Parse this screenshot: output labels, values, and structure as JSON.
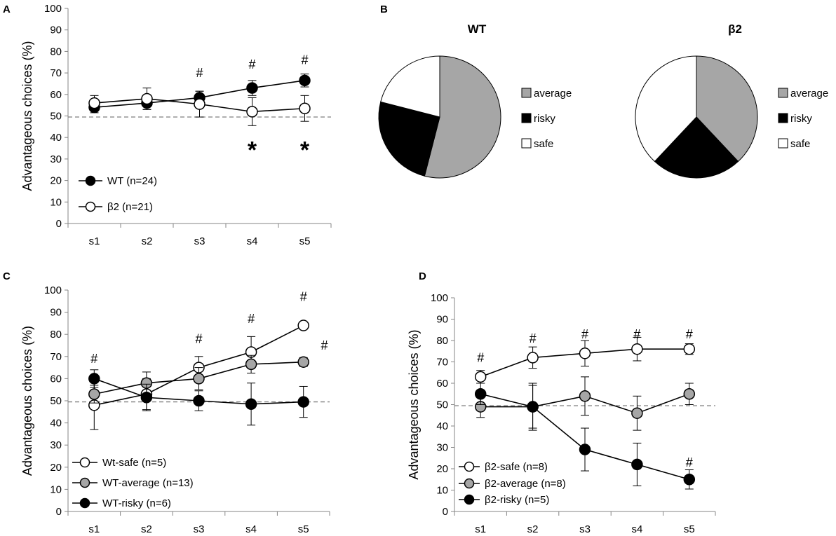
{
  "colors": {
    "black": "#000000",
    "gray": "#a6a6a6",
    "white": "#ffffff",
    "axis": "#868686",
    "dash": "#7f7f7f"
  },
  "chart_data": [
    {
      "panel": "A",
      "type": "line",
      "categories": [
        "s1",
        "s2",
        "s3",
        "s4",
        "s5"
      ],
      "ylabel": "Advantageous choices (%)",
      "xlabel": "",
      "ylim": [
        0,
        100
      ],
      "yticks": [
        0,
        10,
        20,
        30,
        40,
        50,
        60,
        70,
        80,
        90,
        100
      ],
      "reference_line": 49.5,
      "series": [
        {
          "name": "WT (n=24)",
          "marker": "black",
          "values": [
            54,
            56,
            58.5,
            63,
            66.5
          ],
          "errors": [
            2.5,
            3,
            3,
            3.5,
            3
          ]
        },
        {
          "name": "β2 (n=21)",
          "marker": "white",
          "values": [
            56,
            58,
            55.5,
            52,
            53.5
          ],
          "errors": [
            3.5,
            5,
            6,
            6.5,
            6
          ]
        }
      ],
      "annotations": [
        {
          "text": "#",
          "category": "s3",
          "y": 70
        },
        {
          "text": "#",
          "category": "s4",
          "y": 74
        },
        {
          "text": "#",
          "category": "s5",
          "y": 76
        },
        {
          "text": "*",
          "category": "s4",
          "y": 37
        },
        {
          "text": "*",
          "category": "s5",
          "y": 37
        }
      ]
    },
    {
      "panel": "B",
      "type": "pie",
      "pies": [
        {
          "title": "WT",
          "slices": [
            {
              "label": "average",
              "value": 54,
              "color": "gray"
            },
            {
              "label": "risky",
              "value": 25,
              "color": "black"
            },
            {
              "label": "safe",
              "value": 21,
              "color": "white"
            }
          ]
        },
        {
          "title": "β2",
          "slices": [
            {
              "label": "average",
              "value": 38,
              "color": "gray"
            },
            {
              "label": "risky",
              "value": 24,
              "color": "black"
            },
            {
              "label": "safe",
              "value": 38,
              "color": "white"
            }
          ]
        }
      ],
      "legend": [
        "average",
        "risky",
        "safe"
      ]
    },
    {
      "panel": "C",
      "type": "line",
      "categories": [
        "s1",
        "s2",
        "s3",
        "s4",
        "s5"
      ],
      "ylabel": "Advantageous choices (%)",
      "xlabel": "",
      "ylim": [
        0,
        100
      ],
      "yticks": [
        0,
        10,
        20,
        30,
        40,
        50,
        60,
        70,
        80,
        90,
        100
      ],
      "reference_line": 49.5,
      "series": [
        {
          "name": "Wt-safe (n=5)",
          "marker": "white",
          "values": [
            48,
            53,
            65,
            72,
            84
          ],
          "errors": [
            11,
            7,
            5,
            7,
            1
          ]
        },
        {
          "name": "WT-average (n=13)",
          "marker": "gray",
          "values": [
            53,
            58,
            60,
            66.5,
            67.5
          ],
          "errors": [
            4,
            5,
            5,
            4,
            2
          ]
        },
        {
          "name": "WT-risky (n=6)",
          "marker": "black",
          "values": [
            60,
            51.5,
            50,
            48.5,
            49.5
          ],
          "errors": [
            4,
            6,
            4.5,
            9.5,
            7
          ]
        }
      ],
      "annotations": [
        {
          "text": "#",
          "category": "s1",
          "y": 69
        },
        {
          "text": "#",
          "category": "s3",
          "y": 78
        },
        {
          "text": "#",
          "category": "s4",
          "y": 87
        },
        {
          "text": "#",
          "category": "s5",
          "y": 97
        },
        {
          "text": "#",
          "category": "s5",
          "y": 75,
          "dx": 0.4
        }
      ]
    },
    {
      "panel": "D",
      "type": "line",
      "categories": [
        "s1",
        "s2",
        "s3",
        "s4",
        "s5"
      ],
      "ylabel": "Advantageous choices (%)",
      "xlabel": "",
      "ylim": [
        0,
        100
      ],
      "yticks": [
        0,
        10,
        20,
        30,
        40,
        50,
        60,
        70,
        80,
        90,
        100
      ],
      "reference_line": 49.5,
      "series": [
        {
          "name": "β2-safe (n=8)",
          "marker": "white",
          "values": [
            63,
            72,
            74,
            76,
            76
          ],
          "errors": [
            3,
            5,
            6,
            5.5,
            2.5
          ]
        },
        {
          "name": "β2-average (n=8)",
          "marker": "gray",
          "values": [
            49,
            49,
            54,
            46,
            55
          ],
          "errors": [
            5,
            10,
            9,
            8,
            5
          ]
        },
        {
          "name": "β2-risky (n=5)",
          "marker": "black",
          "values": [
            55,
            49,
            29,
            22,
            15
          ],
          "errors": [
            5,
            11,
            10,
            10,
            4.5
          ]
        }
      ],
      "annotations": [
        {
          "text": "#",
          "category": "s1",
          "y": 72
        },
        {
          "text": "#",
          "category": "s2",
          "y": 81
        },
        {
          "text": "#",
          "category": "s3",
          "y": 83
        },
        {
          "text": "#",
          "category": "s4",
          "y": 83
        },
        {
          "text": "#",
          "category": "s5",
          "y": 83
        },
        {
          "text": "#",
          "category": "s5",
          "y": 23
        }
      ]
    }
  ]
}
